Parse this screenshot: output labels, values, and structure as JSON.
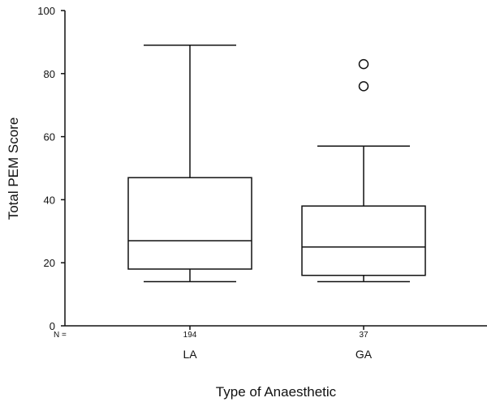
{
  "chart_data": {
    "type": "boxplot",
    "title": "",
    "xlabel": "Type of Anaesthetic",
    "ylabel": "Total PEM Score",
    "ylim": [
      0,
      100
    ],
    "yticks": [
      0,
      20,
      40,
      60,
      80,
      100
    ],
    "grid": false,
    "n_label": "N =",
    "categories": [
      "LA",
      "GA"
    ],
    "n": [
      "194",
      "37"
    ],
    "boxes": [
      {
        "category": "LA",
        "whisker_low": 14,
        "q1": 18,
        "median": 27,
        "q3": 47,
        "whisker_high": 89,
        "outliers": []
      },
      {
        "category": "GA",
        "whisker_low": 14,
        "q1": 16,
        "median": 25,
        "q3": 38,
        "whisker_high": 57,
        "outliers": [
          76,
          83
        ]
      }
    ]
  }
}
